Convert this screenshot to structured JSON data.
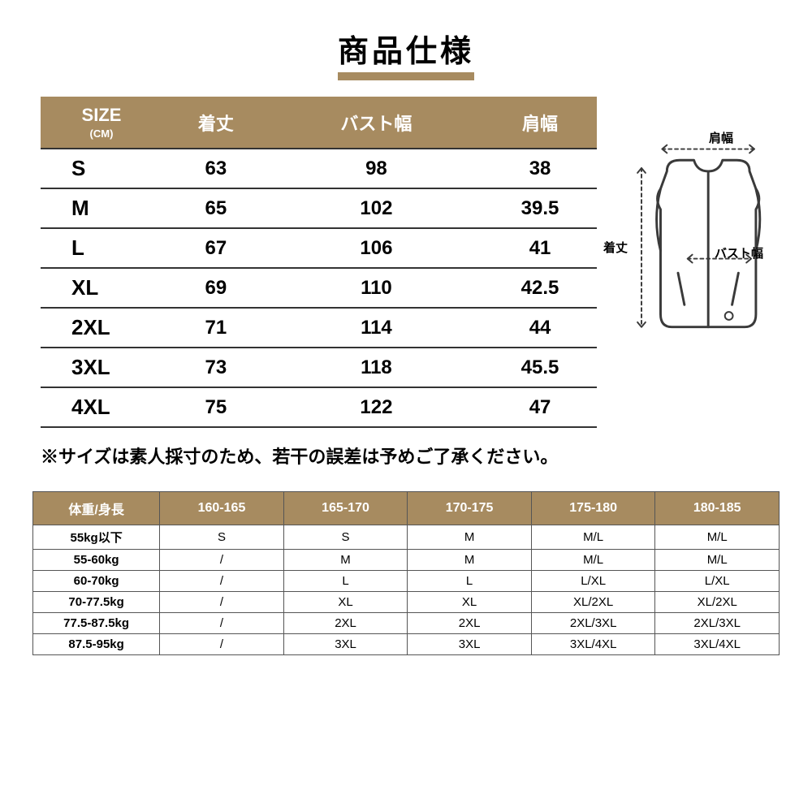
{
  "title": "商品仕様",
  "style": {
    "accent_color": "#a78b60",
    "title_underline_color": "#a78b60",
    "header_bg": "#a78b60",
    "header_text_color": "#ffffff",
    "body_text_color": "#000000",
    "border_color": "#333333",
    "rec_border_color": "#555555",
    "background_color": "#ffffff",
    "title_fontsize": 38,
    "size_cell_fontsize": 24,
    "size_firstcol_fontsize": 26,
    "note_fontsize": 22,
    "rec_header_fontsize": 16,
    "rec_cell_fontsize": 15
  },
  "size_table": {
    "type": "table",
    "headers": {
      "col1_main": "SIZE",
      "col1_sub": "(CM)",
      "col2": "着丈",
      "col3": "バスト幅",
      "col4": "肩幅"
    },
    "rows": [
      {
        "size": "S",
        "length": "63",
        "bust": "98",
        "shoulder": "38"
      },
      {
        "size": "M",
        "length": "65",
        "bust": "102",
        "shoulder": "39.5"
      },
      {
        "size": "L",
        "length": "67",
        "bust": "106",
        "shoulder": "41"
      },
      {
        "size": "XL",
        "length": "69",
        "bust": "110",
        "shoulder": "42.5"
      },
      {
        "size": "2XL",
        "length": "71",
        "bust": "114",
        "shoulder": "44"
      },
      {
        "size": "3XL",
        "length": "73",
        "bust": "118",
        "shoulder": "45.5"
      },
      {
        "size": "4XL",
        "length": "75",
        "bust": "122",
        "shoulder": "47"
      }
    ]
  },
  "vest": {
    "label_shoulder": "肩幅",
    "label_length": "着丈",
    "label_bust": "バスト幅",
    "stroke_color": "#3a3a3a",
    "fill_color": "#ffffff"
  },
  "note": "※サイズは素人採寸のため、若干の誤差は予めご了承ください。",
  "rec_table": {
    "type": "table",
    "header_first": "体重/身長",
    "height_cols": [
      "160-165",
      "165-170",
      "170-175",
      "175-180",
      "180-185"
    ],
    "rows": [
      {
        "weight": "55kg以下",
        "cells": [
          "S",
          "S",
          "M",
          "M/L",
          "M/L"
        ]
      },
      {
        "weight": "55-60kg",
        "cells": [
          "/",
          "M",
          "M",
          "M/L",
          "M/L"
        ]
      },
      {
        "weight": "60-70kg",
        "cells": [
          "/",
          "L",
          "L",
          "L/XL",
          "L/XL"
        ]
      },
      {
        "weight": "70-77.5kg",
        "cells": [
          "/",
          "XL",
          "XL",
          "XL/2XL",
          "XL/2XL"
        ]
      },
      {
        "weight": "77.5-87.5kg",
        "cells": [
          "/",
          "2XL",
          "2XL",
          "2XL/3XL",
          "2XL/3XL"
        ]
      },
      {
        "weight": "87.5-95kg",
        "cells": [
          "/",
          "3XL",
          "3XL",
          "3XL/4XL",
          "3XL/4XL"
        ]
      }
    ]
  }
}
